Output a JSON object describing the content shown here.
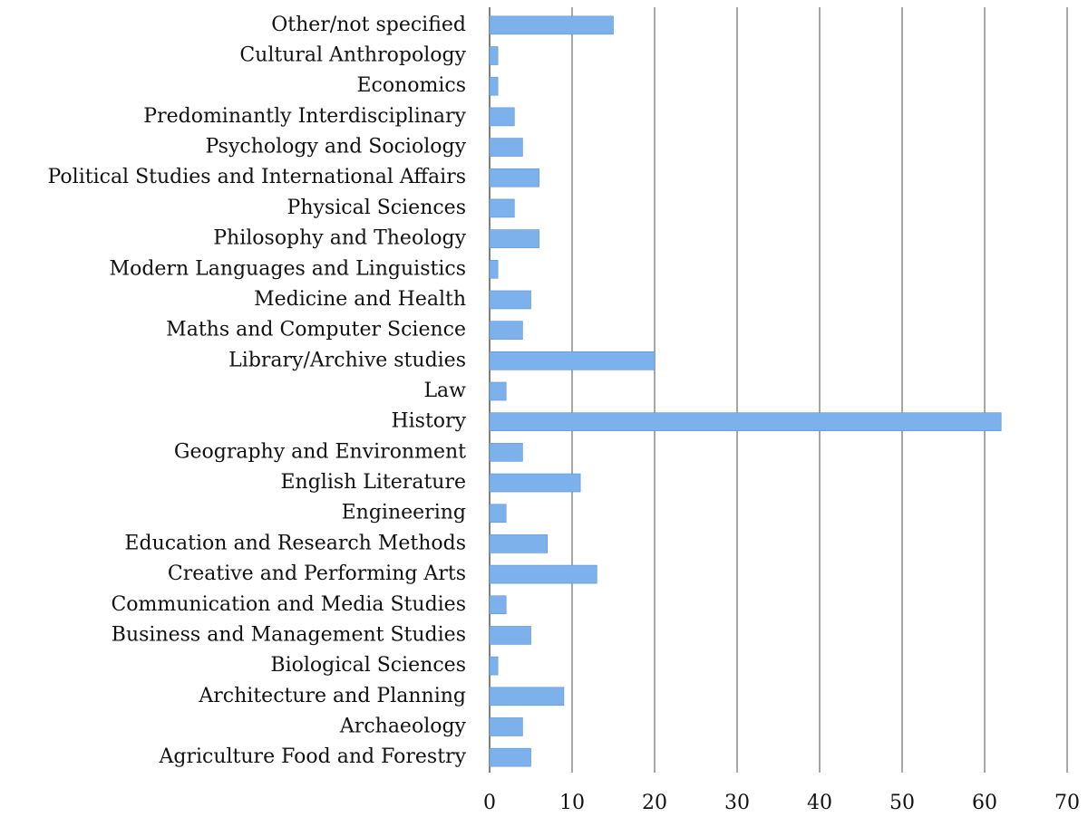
{
  "chart_data": {
    "type": "bar",
    "orientation": "horizontal",
    "categories": [
      "Other/not specified",
      "Cultural Anthropology",
      "Economics",
      "Predominantly Interdisciplinary",
      "Psychology and Sociology",
      "Political Studies and International Affairs",
      "Physical Sciences",
      "Philosophy and Theology",
      "Modern Languages and Linguistics",
      "Medicine and Health",
      "Maths and Computer Science",
      "Library/Archive studies",
      "Law",
      "History",
      "Geography and Environment",
      "English Literature",
      "Engineering",
      "Education and Research Methods",
      "Creative and Performing Arts",
      "Communication and Media Studies",
      "Business and Management Studies",
      "Biological Sciences",
      "Architecture and Planning",
      "Archaeology",
      "Agriculture Food and Forestry"
    ],
    "values": [
      15,
      1,
      1,
      3,
      4,
      6,
      3,
      6,
      1,
      5,
      4,
      20,
      2,
      62,
      4,
      11,
      2,
      7,
      13,
      2,
      5,
      1,
      9,
      4,
      5
    ],
    "color": "#7db1ec",
    "xlim": [
      0,
      70
    ],
    "xticks": [
      0,
      10,
      20,
      30,
      40,
      50,
      60,
      70
    ],
    "grid": true
  }
}
